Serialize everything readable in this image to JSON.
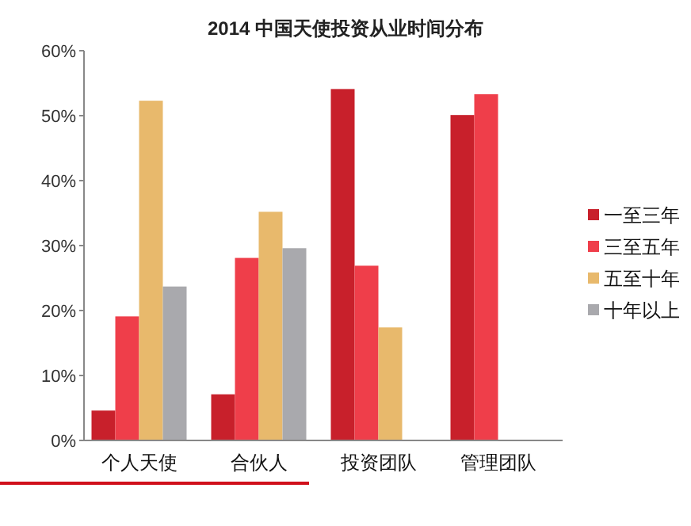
{
  "chart_data": {
    "type": "bar",
    "title": "2014 中国天使投资从业时间分布",
    "categories": [
      "个人天使",
      "合伙人",
      "投资团队",
      "管理团队"
    ],
    "series": [
      {
        "name": "一至三年",
        "color": "#c8202b",
        "values": [
          4.6,
          7.1,
          54.1,
          50.1
        ]
      },
      {
        "name": "三至五年",
        "color": "#ef3e4a",
        "values": [
          19.1,
          28.1,
          26.9,
          53.3
        ]
      },
      {
        "name": "五至十年",
        "color": "#e8b96c",
        "values": [
          52.3,
          35.2,
          17.4,
          null
        ]
      },
      {
        "name": "十年以上",
        "color": "#a9a9ad",
        "values": [
          23.7,
          29.6,
          null,
          null
        ]
      }
    ],
    "ylim": [
      0,
      60
    ],
    "yticks": [
      {
        "value": 0,
        "label": "0%"
      },
      {
        "value": 10,
        "label": "10%"
      },
      {
        "value": 20,
        "label": "20%"
      },
      {
        "value": 30,
        "label": "30%"
      },
      {
        "value": 40,
        "label": "40%"
      },
      {
        "value": 50,
        "label": "50%"
      },
      {
        "value": 60,
        "label": "60%"
      }
    ],
    "grid": false,
    "legend": "right"
  }
}
